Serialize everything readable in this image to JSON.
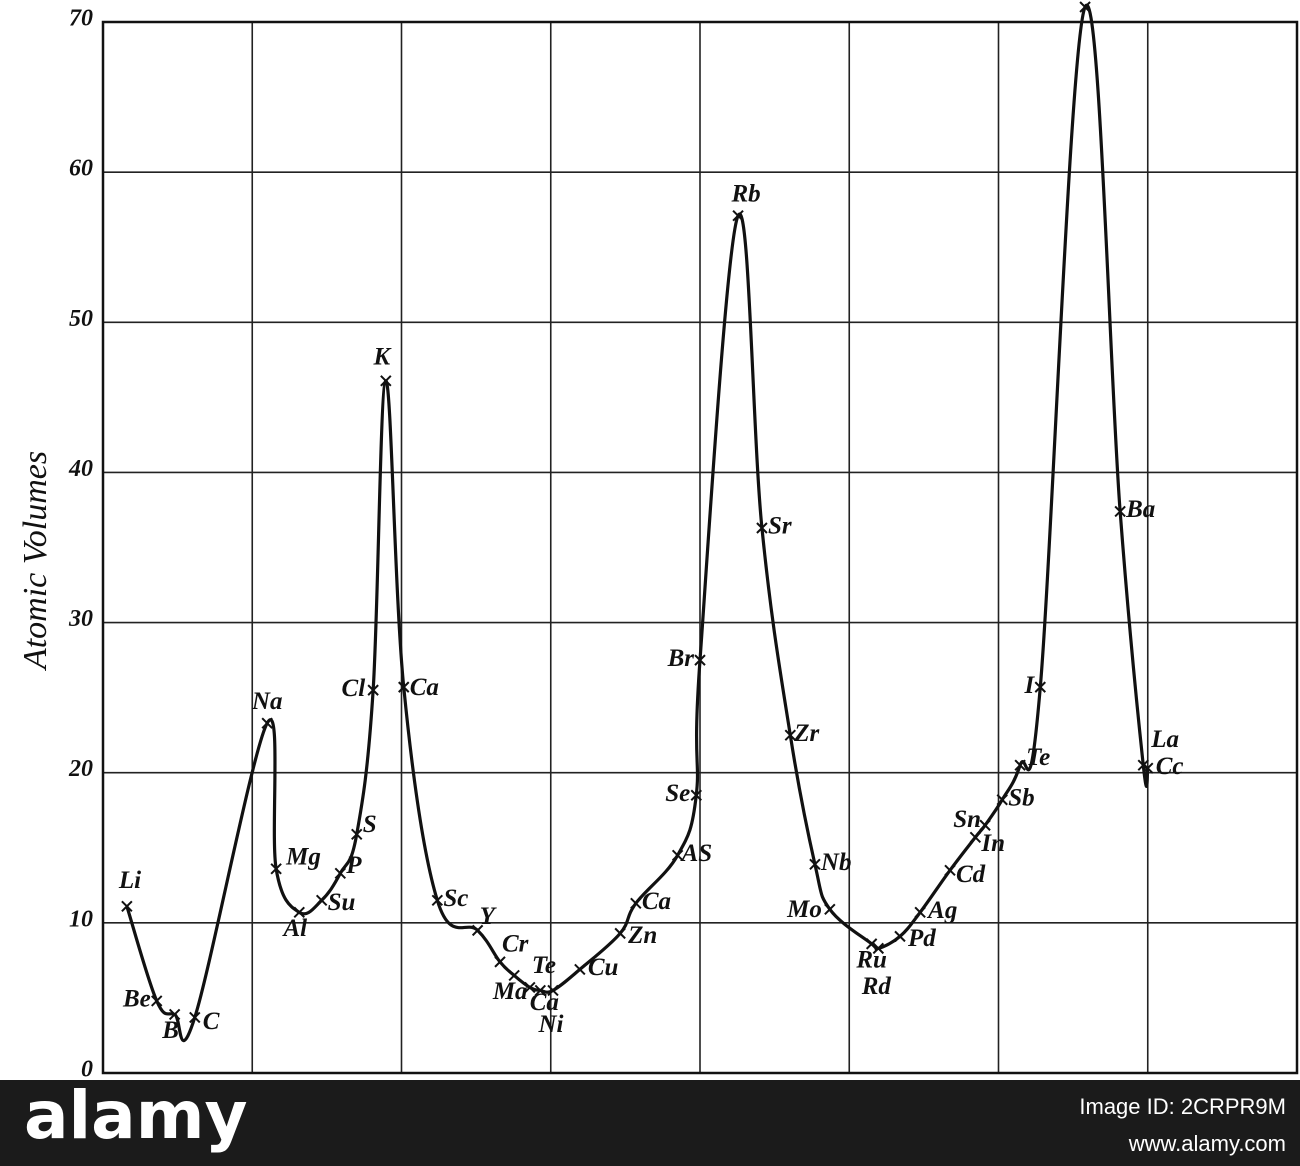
{
  "chart_data": {
    "type": "line",
    "y_label": "Atomic Volumes",
    "x": [
      3.2,
      7.2,
      9.6,
      12.3,
      22.0,
      23.2,
      26.3,
      29.3,
      31.8,
      34.0,
      36.2,
      37.9,
      40.3,
      44.8,
      50.2,
      53.2,
      55.1,
      57.2,
      58.6,
      60.3,
      63.9,
      69.3,
      71.4,
      77.0,
      79.5,
      80.0,
      85.1,
      88.3,
      92.1,
      95.4,
      97.4,
      103.0,
      103.9,
      106.8,
      109.5,
      113.5,
      116.9,
      118.2,
      120.5,
      122.9,
      125.6,
      131.6,
      136.3,
      139.4,
      140.0
    ],
    "values": [
      11.1,
      4.8,
      3.9,
      3.7,
      23.3,
      13.6,
      10.7,
      11.5,
      13.3,
      15.9,
      25.5,
      46.1,
      25.7,
      11.5,
      9.5,
      7.4,
      6.5,
      5.7,
      5.5,
      5.5,
      6.9,
      9.3,
      11.3,
      14.5,
      18.5,
      27.5,
      57.1,
      36.3,
      22.5,
      13.9,
      10.9,
      8.6,
      8.3,
      9.1,
      10.7,
      13.5,
      15.7,
      16.5,
      18.2,
      20.5,
      25.7,
      71.0,
      37.4,
      20.5,
      20.3
    ],
    "point_labels": [
      "Li",
      "Be",
      "B",
      "C",
      "Na",
      "Mg",
      "Al",
      "Su",
      "P",
      "S",
      "Cl",
      "K",
      "Ca",
      "Sc",
      "Y",
      "Cr",
      "Ma",
      "Te",
      "Ca",
      "Ni",
      "Cu",
      "Zn",
      "Ca",
      "AS",
      "Se",
      "Br",
      "Rb",
      "Sr",
      "Zr",
      "Nb",
      "Mo",
      "Ru",
      "Rd",
      "Pd",
      "Ag",
      "Cd",
      "In",
      "Sn",
      "Sb",
      "Te",
      "I",
      null,
      "Ba",
      "La",
      "Cc"
    ],
    "color": "#111111",
    "xlim": [
      0,
      160
    ],
    "xticks": [
      0,
      20,
      40,
      60,
      80,
      100,
      120,
      140,
      160
    ],
    "ylim": [
      0,
      70
    ],
    "yticks": [
      0,
      10,
      20,
      30,
      40,
      50,
      60,
      70
    ],
    "grid": true
  },
  "watermark": {
    "brand": "alamy",
    "image_id": "Image ID: 2CRPR9M",
    "url": "www.alamy.com"
  }
}
